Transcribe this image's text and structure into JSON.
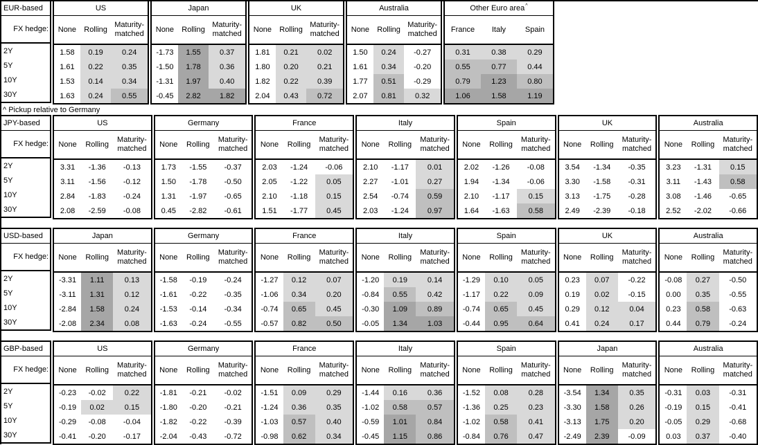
{
  "note": "^ Pickup relative to Germany",
  "fx_hedge_label": "FX hedge:",
  "hedge_columns": [
    "None",
    "Rolling",
    "Maturity-matched"
  ],
  "maturities": [
    "2Y",
    "5Y",
    "10Y",
    "30Y"
  ],
  "colors": {
    "background": "#ffffff",
    "border": "#000000",
    "shade_light": "#d9d9d9",
    "shade_mid": "#bfbfbf",
    "shade_dark": "#a6a6a6",
    "shade_thresholds": {
      "light_min": 0,
      "mid_min": 0.5,
      "dark_min": 1.0
    }
  },
  "chart_data": [
    {
      "type": "table",
      "title": "EUR-based",
      "row_labels": [
        "2Y",
        "5Y",
        "10Y",
        "30Y"
      ],
      "groups": [
        {
          "name": "US",
          "rows": [
            [
              "1.58",
              "0.19",
              "0.24"
            ],
            [
              "1.61",
              "0.22",
              "0.35"
            ],
            [
              "1.53",
              "0.14",
              "0.34"
            ],
            [
              "1.63",
              "0.24",
              "0.55"
            ]
          ]
        },
        {
          "name": "Japan",
          "rows": [
            [
              "-1.73",
              "1.55",
              "0.37"
            ],
            [
              "-1.50",
              "1.78",
              "0.36"
            ],
            [
              "-1.31",
              "1.97",
              "0.40"
            ],
            [
              "-0.45",
              "2.82",
              "1.82"
            ]
          ]
        },
        {
          "name": "UK",
          "rows": [
            [
              "1.81",
              "0.21",
              "0.02"
            ],
            [
              "1.80",
              "0.20",
              "0.21"
            ],
            [
              "1.82",
              "0.22",
              "0.39"
            ],
            [
              "2.04",
              "0.43",
              "0.72"
            ]
          ]
        },
        {
          "name": "Australia",
          "rows": [
            [
              "1.50",
              "0.24",
              "-0.27"
            ],
            [
              "1.61",
              "0.34",
              "-0.20"
            ],
            [
              "1.77",
              "0.51",
              "-0.29"
            ],
            [
              "2.07",
              "0.81",
              "0.32"
            ]
          ]
        },
        {
          "name": "Other Euro area",
          "superscript": "^",
          "wide": true,
          "pickup": true,
          "columns": [
            "France",
            "Italy",
            "Spain"
          ],
          "rows": [
            [
              "0.31",
              "0.38",
              "0.29"
            ],
            [
              "0.55",
              "0.77",
              "0.44"
            ],
            [
              "0.79",
              "1.23",
              "0.80"
            ],
            [
              "1.06",
              "1.58",
              "1.19"
            ]
          ]
        }
      ]
    },
    {
      "type": "table",
      "title": "JPY-based",
      "row_labels": [
        "2Y",
        "5Y",
        "10Y",
        "30Y"
      ],
      "groups": [
        {
          "name": "US",
          "rows": [
            [
              "3.31",
              "-1.36",
              "-0.13"
            ],
            [
              "3.11",
              "-1.56",
              "-0.12"
            ],
            [
              "2.84",
              "-1.83",
              "-0.24"
            ],
            [
              "2.08",
              "-2.59",
              "-0.08"
            ]
          ]
        },
        {
          "name": "Germany",
          "rows": [
            [
              "1.73",
              "-1.55",
              "-0.37"
            ],
            [
              "1.50",
              "-1.78",
              "-0.50"
            ],
            [
              "1.31",
              "-1.97",
              "-0.65"
            ],
            [
              "0.45",
              "-2.82",
              "-0.61"
            ]
          ]
        },
        {
          "name": "France",
          "rows": [
            [
              "2.03",
              "-1.24",
              "-0.06"
            ],
            [
              "2.05",
              "-1.22",
              "0.05"
            ],
            [
              "2.10",
              "-1.18",
              "0.15"
            ],
            [
              "1.51",
              "-1.77",
              "0.45"
            ]
          ]
        },
        {
          "name": "Italy",
          "rows": [
            [
              "2.10",
              "-1.17",
              "0.01"
            ],
            [
              "2.27",
              "-1.01",
              "0.27"
            ],
            [
              "2.54",
              "-0.74",
              "0.59"
            ],
            [
              "2.03",
              "-1.24",
              "0.97"
            ]
          ]
        },
        {
          "name": "Spain",
          "rows": [
            [
              "2.02",
              "-1.26",
              "-0.08"
            ],
            [
              "1.94",
              "-1.34",
              "-0.06"
            ],
            [
              "2.10",
              "-1.17",
              "0.15"
            ],
            [
              "1.64",
              "-1.63",
              "0.58"
            ]
          ]
        },
        {
          "name": "UK",
          "rows": [
            [
              "3.54",
              "-1.34",
              "-0.35"
            ],
            [
              "3.30",
              "-1.58",
              "-0.31"
            ],
            [
              "3.13",
              "-1.75",
              "-0.28"
            ],
            [
              "2.49",
              "-2.39",
              "-0.18"
            ]
          ]
        },
        {
          "name": "Australia",
          "rows": [
            [
              "3.23",
              "-1.31",
              "0.15"
            ],
            [
              "3.11",
              "-1.43",
              "0.58"
            ],
            [
              "3.08",
              "-1.46",
              "-0.65"
            ],
            [
              "2.52",
              "-2.02",
              "-0.66"
            ]
          ]
        }
      ]
    },
    {
      "type": "table",
      "title": "USD-based",
      "row_labels": [
        "2Y",
        "5Y",
        "10Y",
        "30Y"
      ],
      "groups": [
        {
          "name": "Japan",
          "rows": [
            [
              "-3.31",
              "1.11",
              "0.13"
            ],
            [
              "-3.11",
              "1.31",
              "0.12"
            ],
            [
              "-2.84",
              "1.58",
              "0.24"
            ],
            [
              "-2.08",
              "2.34",
              "0.08"
            ]
          ]
        },
        {
          "name": "Germany",
          "rows": [
            [
              "-1.58",
              "-0.19",
              "-0.24"
            ],
            [
              "-1.61",
              "-0.22",
              "-0.35"
            ],
            [
              "-1.53",
              "-0.14",
              "-0.34"
            ],
            [
              "-1.63",
              "-0.24",
              "-0.55"
            ]
          ]
        },
        {
          "name": "France",
          "rows": [
            [
              "-1.27",
              "0.12",
              "0.07"
            ],
            [
              "-1.06",
              "0.34",
              "0.20"
            ],
            [
              "-0.74",
              "0.65",
              "0.45"
            ],
            [
              "-0.57",
              "0.82",
              "0.50"
            ]
          ]
        },
        {
          "name": "Italy",
          "rows": [
            [
              "-1.20",
              "0.19",
              "0.14"
            ],
            [
              "-0.84",
              "0.55",
              "0.42"
            ],
            [
              "-0.30",
              "1.09",
              "0.89"
            ],
            [
              "-0.05",
              "1.34",
              "1.03"
            ]
          ]
        },
        {
          "name": "Spain",
          "rows": [
            [
              "-1.29",
              "0.10",
              "0.05"
            ],
            [
              "-1.17",
              "0.22",
              "0.09"
            ],
            [
              "-0.74",
              "0.65",
              "0.45"
            ],
            [
              "-0.44",
              "0.95",
              "0.64"
            ]
          ]
        },
        {
          "name": "UK",
          "rows": [
            [
              "0.23",
              "0.07",
              "-0.22"
            ],
            [
              "0.19",
              "0.02",
              "-0.15"
            ],
            [
              "0.29",
              "0.12",
              "0.04"
            ],
            [
              "0.41",
              "0.24",
              "0.17"
            ]
          ]
        },
        {
          "name": "Australia",
          "rows": [
            [
              "-0.08",
              "0.27",
              "-0.50"
            ],
            [
              "0.00",
              "0.35",
              "-0.55"
            ],
            [
              "0.23",
              "0.58",
              "-0.63"
            ],
            [
              "0.44",
              "0.79",
              "-0.24"
            ]
          ]
        }
      ]
    },
    {
      "type": "table",
      "title": "GBP-based",
      "row_labels": [
        "2Y",
        "5Y",
        "10Y",
        "30Y"
      ],
      "groups": [
        {
          "name": "US",
          "rows": [
            [
              "-0.23",
              "-0.02",
              "0.22"
            ],
            [
              "-0.19",
              "0.02",
              "0.15"
            ],
            [
              "-0.29",
              "-0.08",
              "-0.04"
            ],
            [
              "-0.41",
              "-0.20",
              "-0.17"
            ]
          ]
        },
        {
          "name": "Germany",
          "rows": [
            [
              "-1.81",
              "-0.21",
              "-0.02"
            ],
            [
              "-1.80",
              "-0.20",
              "-0.21"
            ],
            [
              "-1.82",
              "-0.22",
              "-0.39"
            ],
            [
              "-2.04",
              "-0.43",
              "-0.72"
            ]
          ]
        },
        {
          "name": "France",
          "rows": [
            [
              "-1.51",
              "0.09",
              "0.29"
            ],
            [
              "-1.24",
              "0.36",
              "0.35"
            ],
            [
              "-1.03",
              "0.57",
              "0.40"
            ],
            [
              "-0.98",
              "0.62",
              "0.34"
            ]
          ]
        },
        {
          "name": "Italy",
          "rows": [
            [
              "-1.44",
              "0.16",
              "0.36"
            ],
            [
              "-1.02",
              "0.58",
              "0.57"
            ],
            [
              "-0.59",
              "1.01",
              "0.84"
            ],
            [
              "-0.45",
              "1.15",
              "0.86"
            ]
          ]
        },
        {
          "name": "Spain",
          "rows": [
            [
              "-1.52",
              "0.08",
              "0.28"
            ],
            [
              "-1.36",
              "0.25",
              "0.23"
            ],
            [
              "-1.02",
              "0.58",
              "0.41"
            ],
            [
              "-0.84",
              "0.76",
              "0.47"
            ]
          ]
        },
        {
          "name": "Japan",
          "rows": [
            [
              "-3.54",
              "1.34",
              "0.35"
            ],
            [
              "-3.30",
              "1.58",
              "0.26"
            ],
            [
              "-3.13",
              "1.75",
              "0.20"
            ],
            [
              "-2.49",
              "2.39",
              "-0.09"
            ]
          ]
        },
        {
          "name": "Australia",
          "rows": [
            [
              "-0.31",
              "0.03",
              "-0.31"
            ],
            [
              "-0.19",
              "0.15",
              "-0.41"
            ],
            [
              "-0.05",
              "0.29",
              "-0.68"
            ],
            [
              "0.03",
              "0.37",
              "-0.40"
            ]
          ]
        }
      ]
    }
  ]
}
